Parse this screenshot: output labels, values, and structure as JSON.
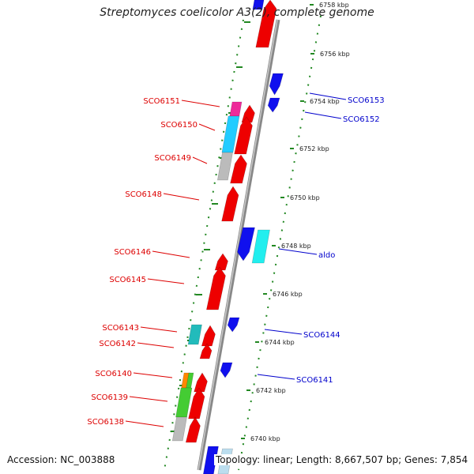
{
  "title": "Streptomyces coelicolor A3(2), complete genome",
  "accession": "Accession: NC_003888",
  "summary": "Topology: linear; Length: 8,667,507 bp; Genes: 7,854",
  "ticks": [
    "6758 kbp",
    "6756 kbp",
    "6754 kbp",
    "6752 kbp",
    "6750 kbp",
    "6748 kbp",
    "6746 kbp",
    "6744 kbp",
    "6742 kbp",
    "6740 kbp"
  ],
  "genes": [
    {
      "name": "SCO6151",
      "color": "#dd0000"
    },
    {
      "name": "SCO6150",
      "color": "#dd0000"
    },
    {
      "name": "SCO6149",
      "color": "#dd0000"
    },
    {
      "name": "SCO6148",
      "color": "#dd0000"
    },
    {
      "name": "SCO6146",
      "color": "#dd0000"
    },
    {
      "name": "SCO6145",
      "color": "#dd0000"
    },
    {
      "name": "SCO6143",
      "color": "#dd0000"
    },
    {
      "name": "SCO6142",
      "color": "#dd0000"
    },
    {
      "name": "SCO6140",
      "color": "#dd0000"
    },
    {
      "name": "SCO6139",
      "color": "#dd0000"
    },
    {
      "name": "SCO6138",
      "color": "#dd0000"
    },
    {
      "name": "SCO6153",
      "color": "#0000cc"
    },
    {
      "name": "SCO6152",
      "color": "#0000cc"
    },
    {
      "name": "aldo",
      "color": "#0000cc"
    },
    {
      "name": "SCO6144",
      "color": "#0000cc"
    },
    {
      "name": "SCO6141",
      "color": "#0000cc"
    }
  ],
  "colors": {
    "forward": "#ee0000",
    "reverse": "#1010ee",
    "magenta": "#ee2a9a",
    "cyan": "#22ccff",
    "teal": "#22bbbb",
    "aqua": "#22eeee",
    "gray": "#bbbbbb",
    "orange": "#ff8800",
    "green": "#44cc33",
    "lightblue": "#bbddee",
    "backbone": "#888888",
    "tickline": "#228822"
  }
}
